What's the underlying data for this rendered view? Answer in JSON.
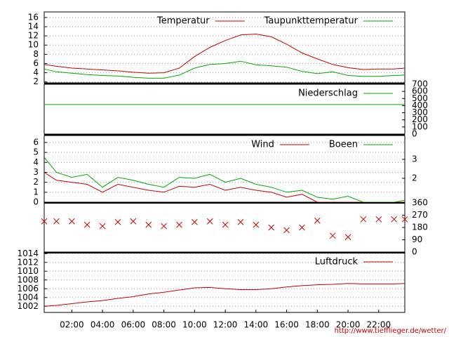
{
  "chart_data": [
    {
      "type": "line",
      "xlim": [
        0.2,
        23.7
      ],
      "ylim": [
        1.8,
        17.2
      ],
      "yticks": [
        2,
        4,
        6,
        8,
        10,
        12,
        14,
        16
      ],
      "grid": true,
      "x": [
        0.2,
        1,
        2,
        3,
        4,
        5,
        6,
        7,
        8,
        9,
        10,
        11,
        12,
        13,
        14,
        15,
        16,
        17,
        18,
        19,
        20,
        21,
        22,
        23,
        23.7
      ],
      "series": [
        {
          "name": "Temperatur",
          "color": "#cc0000",
          "values": [
            5.8,
            5.4,
            5.0,
            4.8,
            4.6,
            4.4,
            4.1,
            3.9,
            4.0,
            5.0,
            7.5,
            9.5,
            11.0,
            12.2,
            12.4,
            11.8,
            10.2,
            8.3,
            7.0,
            5.8,
            5.1,
            4.7,
            4.8,
            4.8,
            5.0
          ]
        },
        {
          "name": "Taupunkttemperatur",
          "color": "#00aa00",
          "values": [
            4.8,
            4.2,
            3.9,
            3.6,
            3.4,
            3.3,
            3.0,
            2.8,
            2.8,
            3.5,
            5.0,
            5.8,
            6.0,
            6.5,
            5.7,
            5.5,
            5.2,
            4.3,
            3.8,
            4.2,
            3.4,
            3.2,
            3.2,
            3.4,
            3.5
          ]
        }
      ]
    },
    {
      "type": "line",
      "xlim": [
        0.2,
        23.7
      ],
      "ylim": [
        0,
        700
      ],
      "yticks": [
        0,
        100,
        200,
        300,
        400,
        500,
        600,
        700
      ],
      "y_axis_position": "right",
      "grid": false,
      "x": [
        0.2,
        23.7
      ],
      "series": [
        {
          "name": "Niederschlag",
          "color": "#00aa00",
          "values": [
            415,
            415
          ]
        }
      ]
    },
    {
      "type": "line",
      "xlim": [
        0.2,
        23.7
      ],
      "ylim": [
        0,
        6.7
      ],
      "yticks": [
        0,
        1,
        2,
        3,
        4,
        5,
        6
      ],
      "y2lim": [
        0.74,
        4.26
      ],
      "y2ticks": [
        2,
        3
      ],
      "grid": true,
      "x": [
        0.2,
        1,
        2,
        3,
        4,
        5,
        6,
        7,
        8,
        9,
        10,
        11,
        12,
        13,
        14,
        15,
        16,
        17,
        18,
        19,
        20,
        21,
        22,
        23,
        23.7
      ],
      "series": [
        {
          "name": "Wind",
          "color": "#cc0000",
          "values": [
            3.0,
            2.2,
            2.0,
            1.8,
            1.0,
            1.8,
            1.5,
            1.2,
            1.0,
            1.6,
            1.5,
            1.8,
            1.2,
            1.5,
            1.2,
            1.0,
            0.5,
            0.8,
            0,
            0,
            0,
            0,
            0,
            0,
            0
          ]
        },
        {
          "name": "Boeen",
          "color": "#00aa00",
          "values": [
            4.5,
            3.0,
            2.5,
            2.8,
            1.5,
            2.5,
            2.2,
            1.8,
            1.5,
            2.5,
            2.4,
            2.8,
            2.0,
            2.4,
            1.8,
            1.5,
            1.0,
            1.2,
            0.5,
            0.3,
            0.6,
            0,
            0,
            0,
            0.2
          ]
        }
      ]
    },
    {
      "type": "scatter",
      "xlim": [
        0.2,
        23.7
      ],
      "ylim": [
        0,
        360
      ],
      "yticks": [
        0,
        90,
        180,
        270,
        360
      ],
      "y_axis_position": "right",
      "grid": false,
      "color": "#cc0000",
      "x": [
        0.2,
        1,
        2,
        3,
        4,
        5,
        6,
        7,
        8,
        9,
        10,
        11,
        12,
        13,
        14,
        15,
        16,
        17,
        18,
        19,
        20,
        21,
        22,
        23,
        23.7
      ],
      "values": [
        225,
        225,
        225,
        200,
        190,
        220,
        225,
        200,
        190,
        200,
        220,
        225,
        200,
        220,
        200,
        180,
        160,
        180,
        230,
        120,
        110,
        240,
        240,
        240,
        240
      ]
    },
    {
      "type": "line",
      "xlim": [
        0.2,
        23.7
      ],
      "ylim": [
        1000.6,
        1014.2
      ],
      "yticks": [
        1002,
        1004,
        1006,
        1008,
        1010,
        1012,
        1014
      ],
      "grid": true,
      "x": [
        0.2,
        1,
        2,
        3,
        4,
        5,
        6,
        7,
        8,
        9,
        10,
        11,
        12,
        13,
        14,
        15,
        16,
        17,
        18,
        19,
        20,
        21,
        22,
        23,
        23.7
      ],
      "xticks": [
        {
          "value": 2,
          "label": "02:00"
        },
        {
          "value": 4,
          "label": "04:00"
        },
        {
          "value": 6,
          "label": "06:00"
        },
        {
          "value": 8,
          "label": "08:00"
        },
        {
          "value": 10,
          "label": "10:00"
        },
        {
          "value": 12,
          "label": "12:00"
        },
        {
          "value": 14,
          "label": "14:00"
        },
        {
          "value": 16,
          "label": "16:00"
        },
        {
          "value": 18,
          "label": "18:00"
        },
        {
          "value": 20,
          "label": "20:00"
        },
        {
          "value": 22,
          "label": "22:00"
        }
      ],
      "series": [
        {
          "name": "Luftdruck",
          "color": "#cc0000",
          "values": [
            1002.0,
            1002.2,
            1002.6,
            1003.0,
            1003.3,
            1003.8,
            1004.2,
            1004.8,
            1005.2,
            1005.7,
            1006.2,
            1006.3,
            1006.0,
            1005.8,
            1005.8,
            1006.0,
            1006.4,
            1006.7,
            1006.9,
            1007.0,
            1007.2,
            1007.1,
            1007.1,
            1007.1,
            1007.2
          ]
        }
      ]
    }
  ],
  "footer": "http://www.tiefflieger.de/wetter/"
}
